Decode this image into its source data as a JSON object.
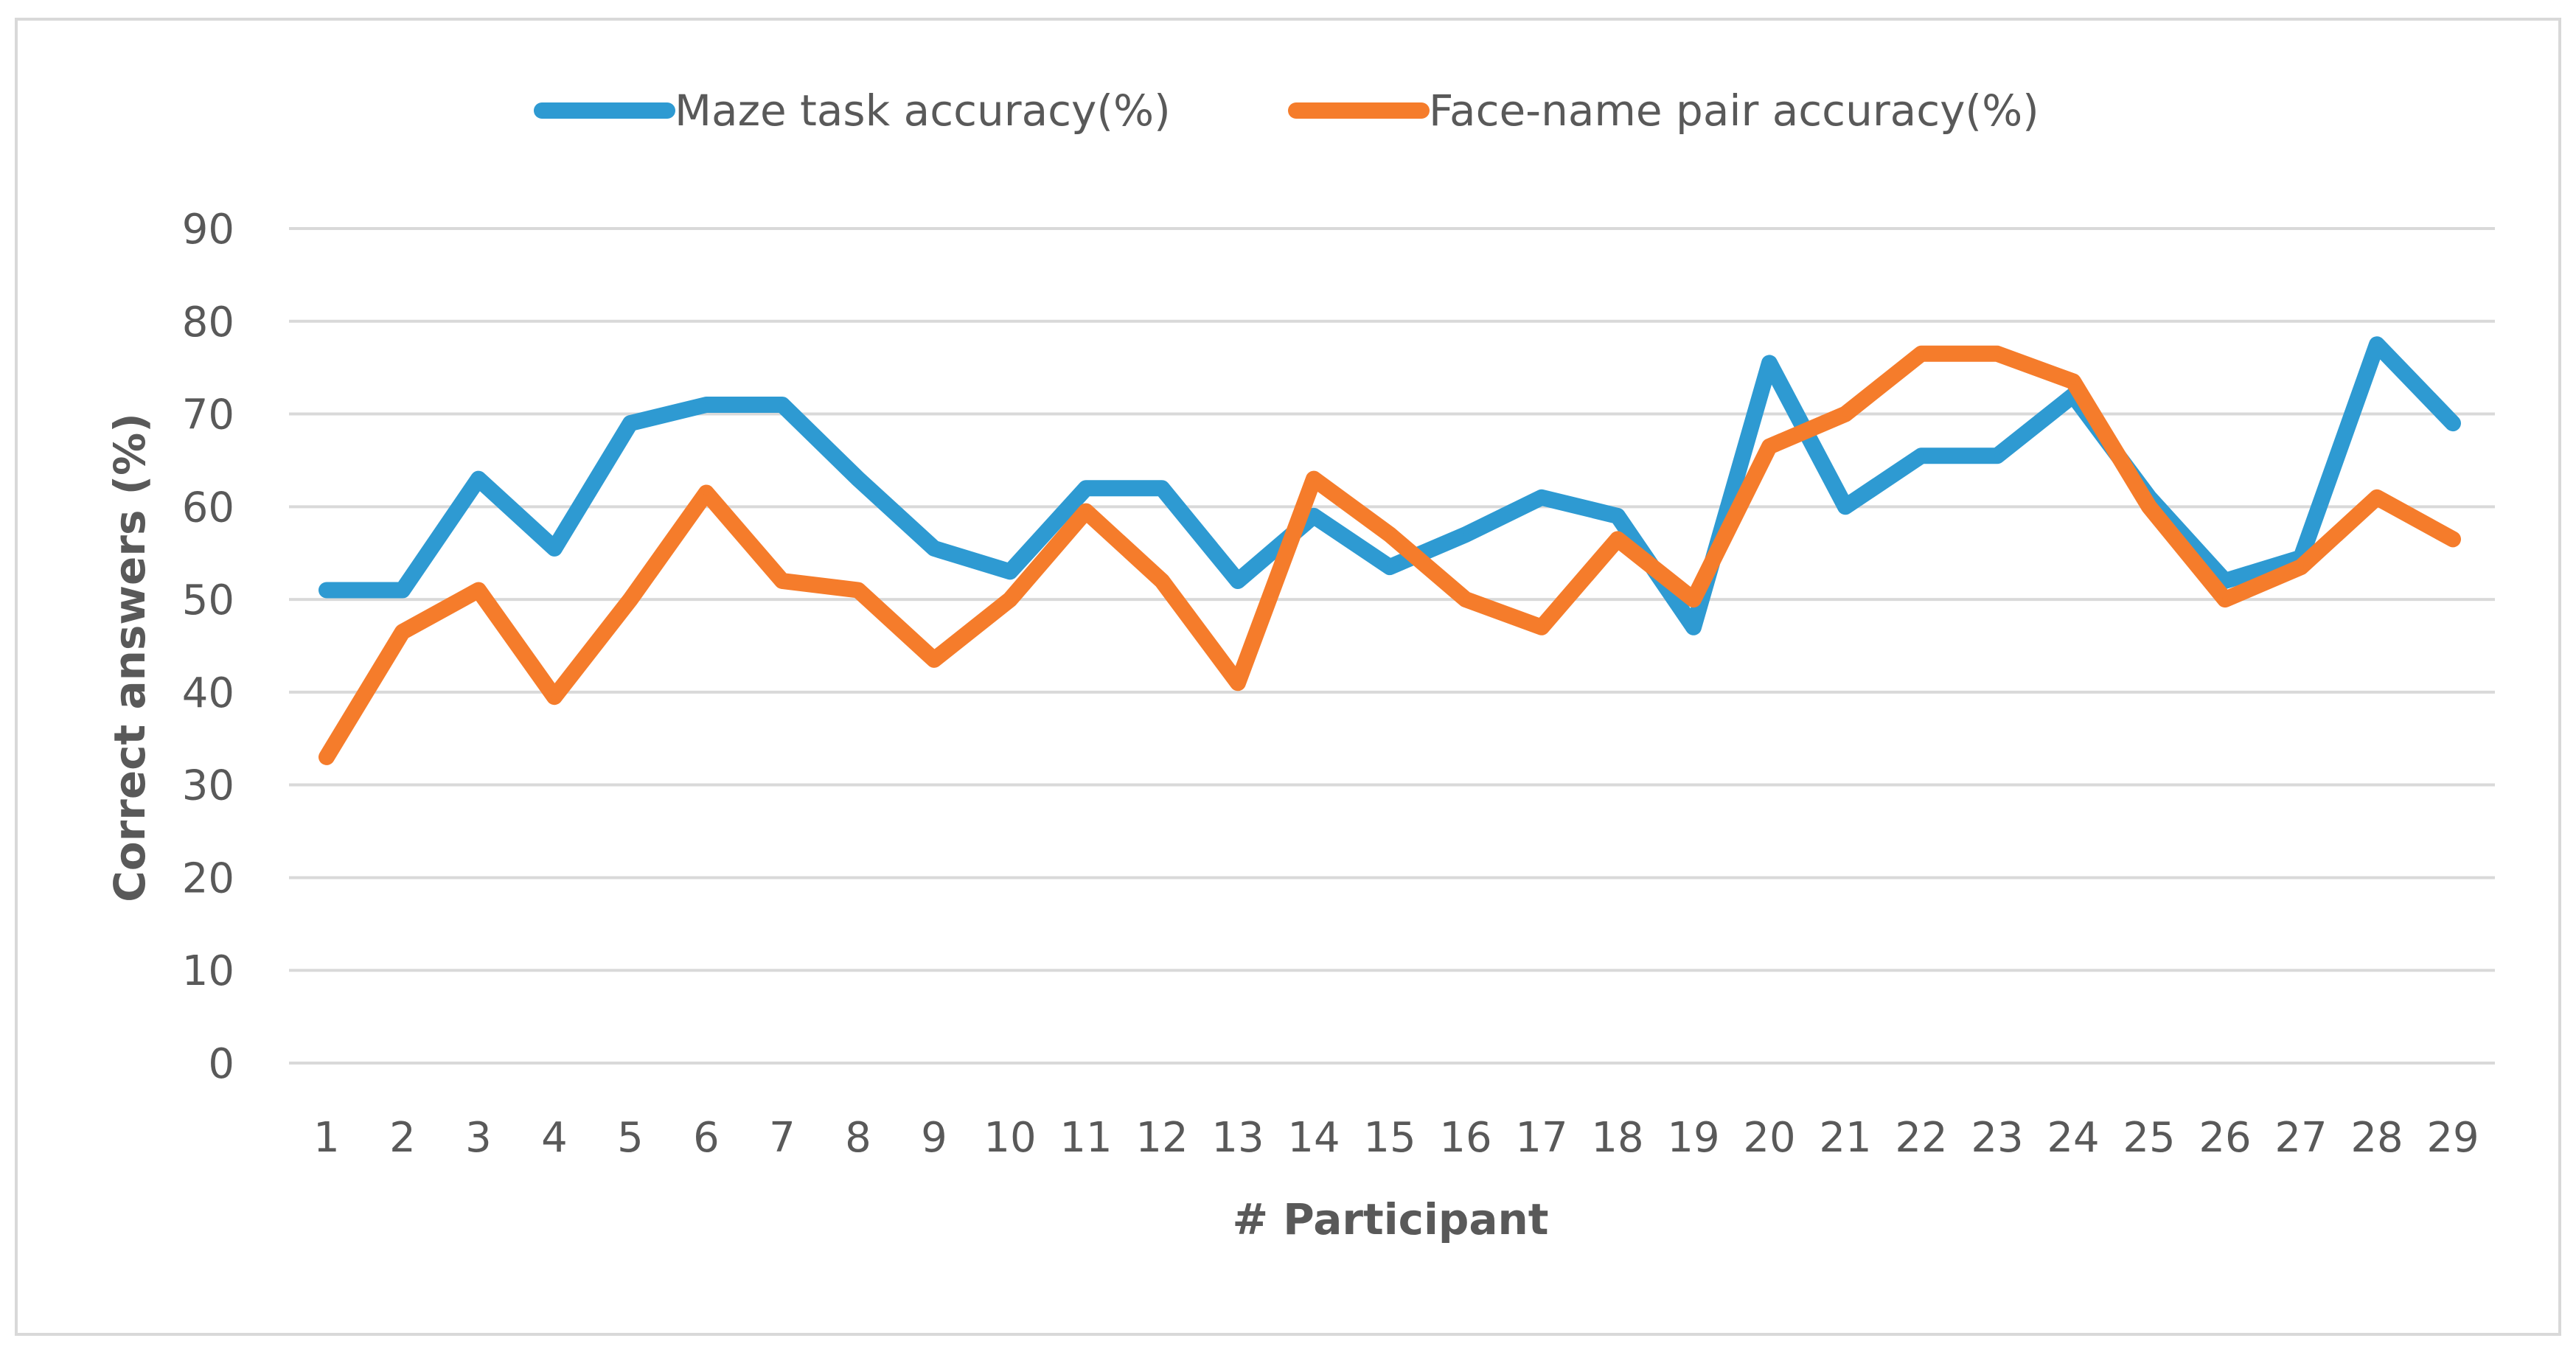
{
  "chart_data": {
    "type": "line",
    "title": "",
    "xlabel": "# Participant",
    "ylabel": "Correct answers (%)",
    "ylim": [
      0,
      90
    ],
    "yticks": [
      0,
      10,
      20,
      30,
      40,
      50,
      60,
      70,
      80,
      90
    ],
    "grid": true,
    "legend_position": "top-center",
    "categories": [
      "1",
      "2",
      "3",
      "4",
      "5",
      "6",
      "7",
      "8",
      "9",
      "10",
      "11",
      "12",
      "13",
      "14",
      "15",
      "16",
      "17",
      "18",
      "19",
      "20",
      "21",
      "22",
      "23",
      "24",
      "25",
      "26",
      "27",
      "28",
      "29"
    ],
    "series": [
      {
        "name": "Maze task accuracy(%)",
        "color": "#2E9AD2",
        "values": [
          51,
          51,
          63,
          55.5,
          69,
          71,
          71,
          63,
          55.5,
          53,
          62,
          62,
          52,
          59,
          53.5,
          57,
          61,
          59,
          47,
          75.5,
          60,
          65.5,
          65.5,
          72,
          61,
          52,
          54.5,
          77.5,
          69
        ]
      },
      {
        "name": "Face-name pair accuracy(%)",
        "color": "#F57C2B",
        "values": [
          33,
          46.5,
          51,
          39.5,
          50,
          61.5,
          52,
          51,
          43.5,
          50,
          59.5,
          52,
          41,
          63,
          57,
          50,
          47,
          56.5,
          50,
          66.5,
          70,
          76.5,
          76.5,
          73.5,
          60,
          50,
          53.5,
          61,
          56.5
        ]
      }
    ]
  }
}
